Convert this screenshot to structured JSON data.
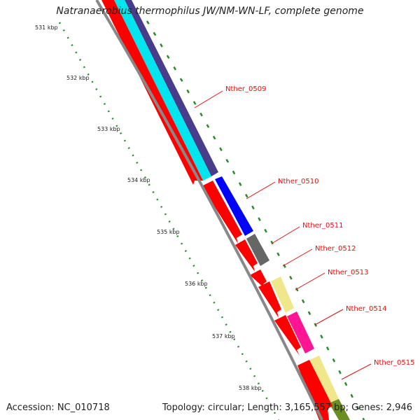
{
  "title": "Natranaerobius thermophilus JW/NM-WN-LF, complete genome",
  "footer": {
    "accession": "Accession: NC_010718",
    "topology": "Topology: circular; Length: 3,165,557 bp; Genes: 2,946"
  },
  "map": {
    "backbone_color": "#888888",
    "cds_color": "#ff0000",
    "tick_color": "#2a8a2a",
    "label_color": "#e01010",
    "kbp_labels": [
      "531 kbp",
      "532 kbp",
      "533 kbp",
      "534 kbp",
      "535 kbp",
      "536 kbp",
      "537 kbp",
      "538 kbp"
    ],
    "genes": [
      {
        "name": "Nther_0509",
        "func_color": "#483d8b",
        "func_color2": "#00e5ee"
      },
      {
        "name": "Nther_0510",
        "func_color": "#0000ff"
      },
      {
        "name": "Nther_0511",
        "func_color": "#666666"
      },
      {
        "name": "Nther_0512",
        "func_color": ""
      },
      {
        "name": "Nther_0513",
        "func_color": "#f0e68c"
      },
      {
        "name": "Nther_0514",
        "func_color": "#ff1493"
      },
      {
        "name": "Nther_0515",
        "func_color": "#f0e68c",
        "func_color2": "#6b8e23"
      }
    ]
  }
}
